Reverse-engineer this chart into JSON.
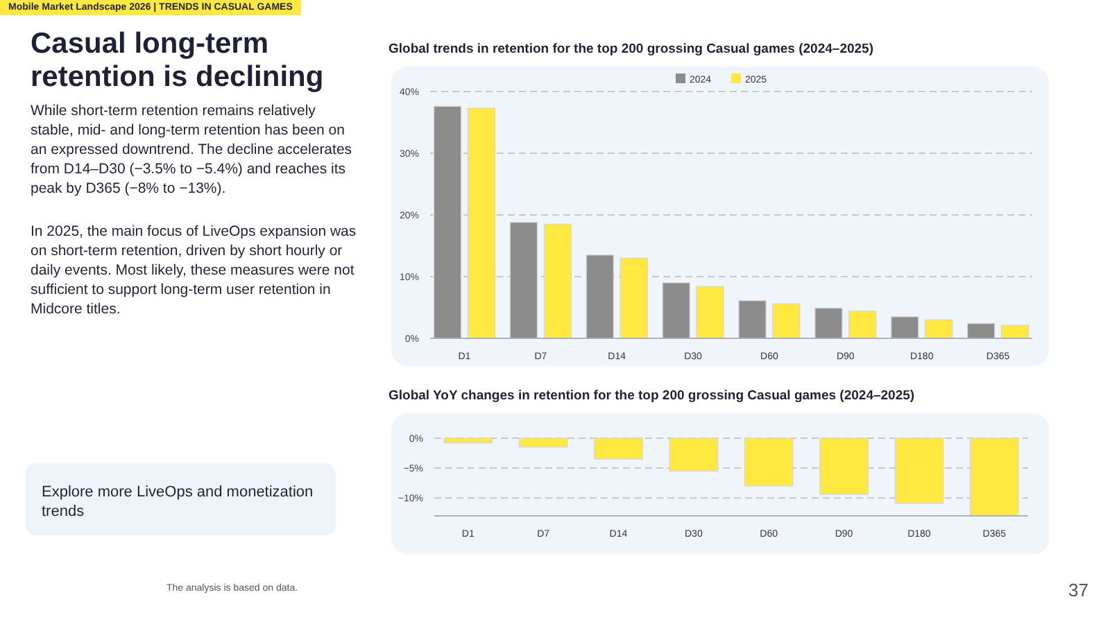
{
  "chart_data": [
    {
      "type": "other",
      "title": "Casual long-term retention is declining",
      "annotations": [
        "Mobile Market Landscape 2026 | TRENDS IN CASUAL GAMES",
        "While short-term retention remains relatively stable, mid- and long-term retention has been on an expressed downtrend. The decline accelerates from D14–D30 (−3.5% to −5.4%) and reaches its peak by D365 (−8% to −13%).",
        "In 2025, the main focus of LiveOps expansion was on short-term retention, driven by short hourly or daily events. Most likely, these measures were not sufficient to support long-term user retention in Midcore titles.",
        "Explore more LiveOps and monetization trends",
        "The analysis is based on data.",
        "37"
      ]
    },
    {
      "type": "bar",
      "title": "Global trends in retention for the top 200 grossing Casual games (2024–2025)",
      "categories": [
        "D1",
        "D7",
        "D14",
        "D30",
        "D60",
        "D90",
        "D180",
        "D365"
      ],
      "series": [
        {
          "name": "2024",
          "color": "#8c8c8c",
          "values": [
            37.6,
            18.8,
            13.5,
            9.0,
            6.1,
            4.9,
            3.5,
            2.4
          ]
        },
        {
          "name": "2025",
          "color": "#ffe83f",
          "values": [
            37.3,
            18.5,
            13.0,
            8.4,
            5.6,
            4.4,
            3.0,
            2.1
          ]
        }
      ],
      "ylim": [
        0,
        40
      ],
      "yticks": [
        {
          "value": 0,
          "label": "0%"
        },
        {
          "value": 10,
          "label": "10%"
        },
        {
          "value": 20,
          "label": "20%"
        },
        {
          "value": 30,
          "label": "30%"
        },
        {
          "value": 40,
          "label": "40%"
        }
      ],
      "grid": "y",
      "legend": "top"
    },
    {
      "type": "bar",
      "title": "Global YoY changes in retention for the top 200 grossing Casual games (2024–2025)",
      "categories": [
        "D1",
        "D7",
        "D14",
        "D30",
        "D60",
        "D90",
        "D180",
        "D365"
      ],
      "values": [
        -0.8,
        -1.5,
        -3.5,
        -5.5,
        -8.0,
        -9.4,
        -10.9,
        -13.0
      ],
      "color": "#ffe83f",
      "ylim": [
        -13,
        0
      ],
      "yticks": [
        {
          "value": -10,
          "label": "−10%"
        },
        {
          "value": -5,
          "label": "−5%"
        },
        {
          "value": 0,
          "label": "0%"
        }
      ],
      "grid": "y"
    }
  ]
}
